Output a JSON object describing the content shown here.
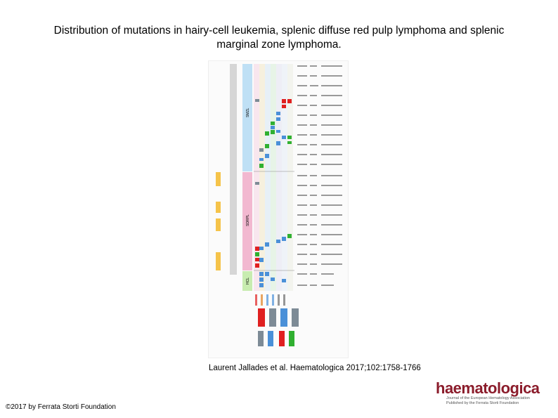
{
  "slide": {
    "title_line1": "Distribution of mutations in hairy-cell leukemia, splenic diffuse red pulp lymphoma and splenic",
    "title_line2": "marginal zone lymphoma.",
    "citation": "Laurent Jallades et al. Haematologica 2017;102:1758-1766",
    "copyright": "©2017 by Ferrata Storti Foundation"
  },
  "figure": {
    "groups": [
      "SMZL",
      "SDRPL",
      "HCL"
    ],
    "colors": {
      "smzl": "#bfe0f5",
      "sdrpl": "#f2b8d0",
      "hcl": "#c8ecb0",
      "highlight": "#f5c34a",
      "red": "#e02020",
      "green": "#30b030",
      "blue": "#4a90d8",
      "grey": "#7d8b96"
    }
  },
  "logo": {
    "wordmark": "haematologica",
    "tagline1": "Journal of the European Hematology Association",
    "tagline2": "Published by the Ferrata Storti Foundation"
  }
}
